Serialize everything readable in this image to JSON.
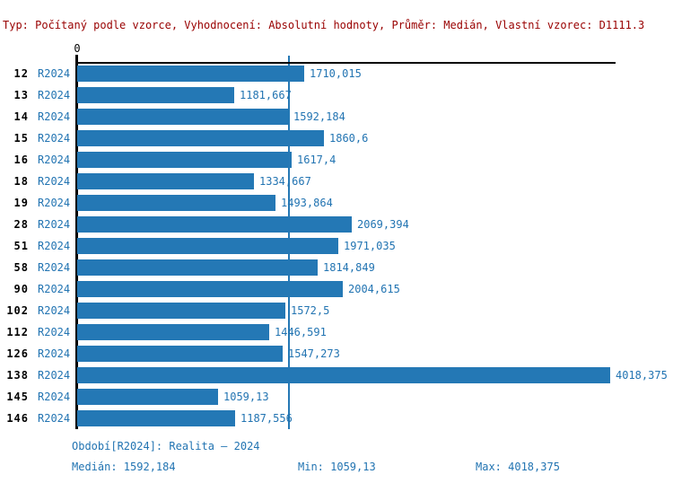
{
  "header": {
    "text": "Typ: Počítaný podle vzorce, Vyhodnocení: Absolutní hodnoty, Průměr: Medián, Vlastní vzorec: D1111.3"
  },
  "chart_data": {
    "type": "bar",
    "orientation": "horizontal",
    "title": "",
    "x_axis": {
      "zero_label": "0",
      "min": 0,
      "max": 4060,
      "gridlines": false
    },
    "categories": [
      "12",
      "13",
      "14",
      "15",
      "16",
      "18",
      "19",
      "28",
      "51",
      "58",
      "90",
      "102",
      "112",
      "126",
      "138",
      "145",
      "146"
    ],
    "series": [
      {
        "name": "R2024",
        "values": [
          1710.015,
          1181.667,
          1592.184,
          1860.6,
          1617.4,
          1334.667,
          1493.864,
          2069.394,
          1971.035,
          1814.849,
          2004.615,
          1572.5,
          1446.591,
          1547.273,
          4018.375,
          1059.13,
          1187.556
        ],
        "value_labels": [
          "1710,015",
          "1181,667",
          "1592,184",
          "1860,6",
          "1617,4",
          "1334,667",
          "1493,864",
          "2069,394",
          "1971,035",
          "1814,849",
          "2004,615",
          "1572,5",
          "1446,591",
          "1547,273",
          "4018,375",
          "1059,13",
          "1187,556"
        ]
      }
    ],
    "median_reference_line": 1592.184,
    "legend_position": "none"
  },
  "footer": {
    "period": "Období[R2024]: Realita – 2024",
    "median": "Medián: 1592,184",
    "min": "Min: 1059,13",
    "max": "Max: 4018,375"
  },
  "colors": {
    "bar_blue": "#2478b5",
    "text_blue": "#2274b2",
    "header_red": "#990000",
    "axis_black": "#000000"
  }
}
